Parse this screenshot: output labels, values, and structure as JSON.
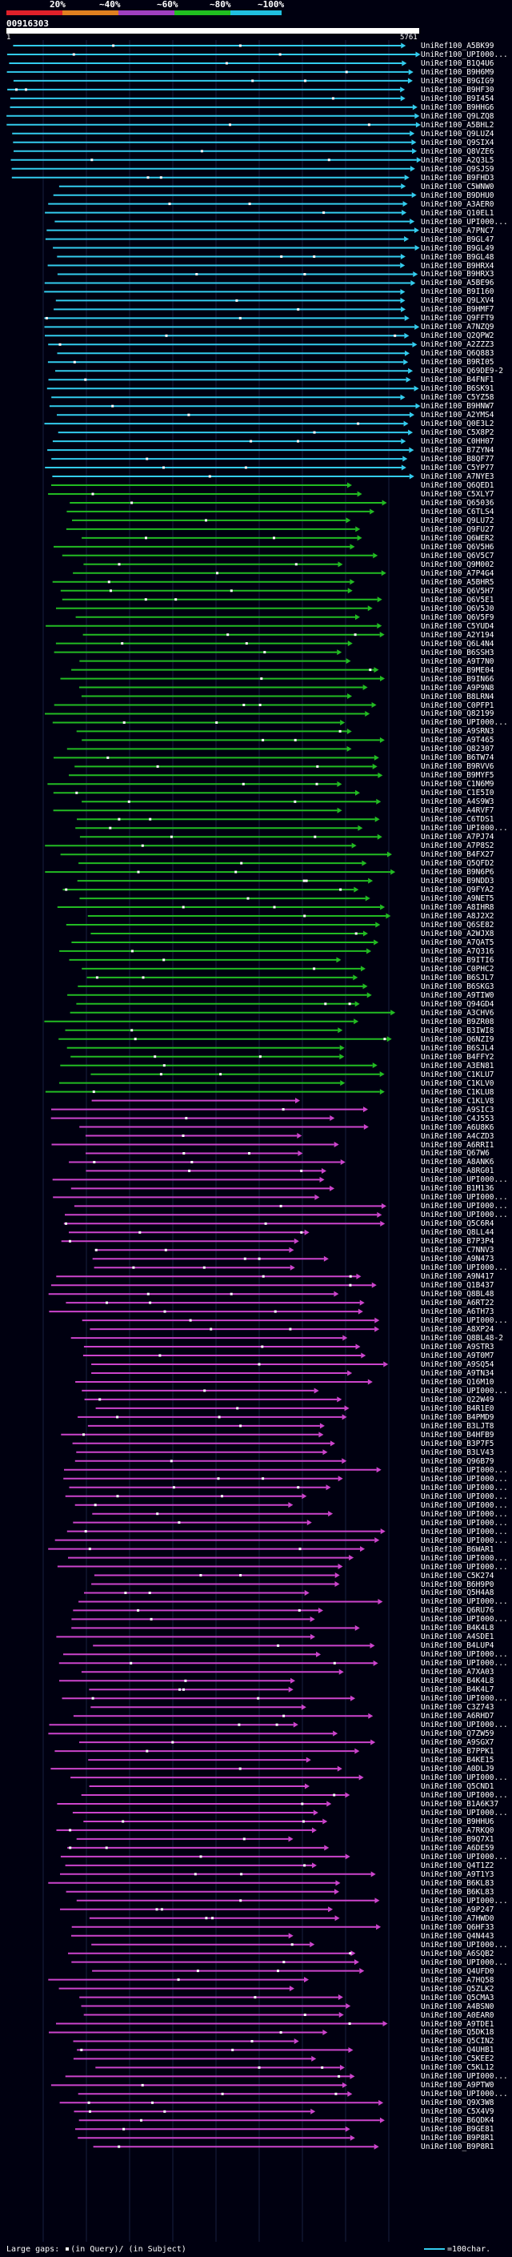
{
  "header": {
    "pct_labels": [
      "20%",
      "~40%",
      "~60%",
      "~80%",
      "~100%"
    ],
    "bands": [
      {
        "color": "#e0202a"
      },
      {
        "color": "#e08020"
      },
      {
        "color": "#a040c0"
      },
      {
        "color": "#20c020"
      },
      {
        "color": "#20c0e0"
      }
    ]
  },
  "query": {
    "id": "00916303",
    "start": "1",
    "end": "5761"
  },
  "colors": {
    "cyan": "#33ccee",
    "green": "#22bb22",
    "magenta": "#cc44cc",
    "gap": "#ffffff"
  },
  "hits": [
    "UniRef100_A5BK99",
    "UniRef100_UPI000...",
    "UniRef100_B1Q4U6",
    "UniRef100_B9H6M9",
    "UniRef100_B9GIG9",
    "UniRef100_B9HF30",
    "UniRef100_B9I454",
    "UniRef100_B9HHG6",
    "UniRef100_Q9LZQ8",
    "UniRef100_A5BHL2",
    "UniRef100_Q9LUZ4",
    "UniRef100_Q9SIX4",
    "UniRef100_Q8VZE6",
    "UniRef100_A2Q3L5",
    "UniRef100_Q9SJS9",
    "UniRef100_B9FHD3",
    "UniRef100_C5WNW0",
    "UniRef100_B9DHU0",
    "UniRef100_A3AER0",
    "UniRef100_Q10EL1",
    "UniRef100_UPI000...",
    "UniRef100_A7PNC7",
    "UniRef100_B9GL47",
    "UniRef100_B9GL49",
    "UniRef100_B9GL48",
    "UniRef100_B9HRX4",
    "UniRef100_B9HRX3",
    "UniRef100_A5BE96",
    "UniRef100_B9I160",
    "UniRef100_Q9LXV4",
    "UniRef100_B9HMF7",
    "UniRef100_Q9FFT9",
    "UniRef100_A7NZQ9",
    "UniRef100_Q2QPW2",
    "UniRef100_A2ZZZ3",
    "UniRef100_Q6Q883",
    "UniRef100_B9RI05",
    "UniRef100_Q69DE9-2",
    "UniRef100_B4FNF1",
    "UniRef100_B6SK91",
    "UniRef100_C5YZ58",
    "UniRef100_B9HNW7",
    "UniRef100_A2YMS4",
    "UniRef100_Q0E3L2",
    "UniRef100_C5X8P2",
    "UniRef100_C0HH07",
    "UniRef100_B7ZYN4",
    "UniRef100_B8QF77",
    "UniRef100_C5YP77",
    "UniRef100_A7NYE3",
    "UniRef100_Q6QED1",
    "UniRef100_C5XLY7",
    "UniRef100_Q65036",
    "UniRef100_C6TLS4",
    "UniRef100_Q9LU72",
    "UniRef100_Q9FU27",
    "UniRef100_Q6WER2",
    "UniRef100_Q6V5H6",
    "UniRef100_Q6V5C7",
    "UniRef100_Q9M002",
    "UniRef100_A7P4G4",
    "UniRef100_A5BHR5",
    "UniRef100_Q6V5H7",
    "UniRef100_Q6V5E1",
    "UniRef100_Q6V5J0",
    "UniRef100_Q6V5F9",
    "UniRef100_C5YUD4",
    "UniRef100_A2Y194",
    "UniRef100_Q6L4N4",
    "UniRef100_B6SSH3",
    "UniRef100_A9T7N0",
    "UniRef100_B9ME04",
    "UniRef100_B9IN66",
    "UniRef100_A9P9N8",
    "UniRef100_B8LRN4",
    "UniRef100_C0PFP1",
    "UniRef100_Q82199",
    "UniRef100_UPI000...",
    "UniRef100_A9SRN3",
    "UniRef100_A9T465",
    "UniRef100_Q82307",
    "UniRef100_B6TW74",
    "UniRef100_B9RVV6",
    "UniRef100_B9MYF5",
    "UniRef100_C1N6M9",
    "UniRef100_C1E5I0",
    "UniRef100_A4S9W3",
    "UniRef100_A4RVF7",
    "UniRef100_C6TDS1",
    "UniRef100_UPI000...",
    "UniRef100_A7PJ74",
    "UniRef100_A7P8S2",
    "UniRef100_B4FX27",
    "UniRef100_Q5QFD2",
    "UniRef100_B9N6P6",
    "UniRef100_B9NDD3",
    "UniRef100_Q9FYA2",
    "UniRef100_A9NET5",
    "UniRef100_A8IHR8",
    "UniRef100_A8J2X2",
    "UniRef100_Q6SE82",
    "UniRef100_A2WJX8",
    "UniRef100_A7QAT5",
    "UniRef100_A7Q316",
    "UniRef100_B9ITI6",
    "UniRef100_C0PHC2",
    "UniRef100_B6SJL7",
    "UniRef100_B6SKG3",
    "UniRef100_A9TIW0",
    "UniRef100_Q94GD4",
    "UniRef100_A3CHV6",
    "UniRef100_B9ZR08",
    "UniRef100_B3IWI8",
    "UniRef100_Q6NZI9",
    "UniRef100_B6SJL4",
    "UniRef100_B4FFY2",
    "UniRef100_A3EN81",
    "UniRef100_C1KLU7",
    "UniRef100_C1KLV0",
    "UniRef100_C1KLU8",
    "UniRef100_C1KLV8",
    "UniRef100_A9SIC3",
    "UniRef100_C4J553",
    "UniRef100_A6U8K6",
    "UniRef100_A4CZD3",
    "UniRef100_A6RRI1",
    "UniRef100_Q67W6",
    "UniRef100_A8ANK6",
    "UniRef100_A8RG01",
    "UniRef100_UPI000...",
    "UniRef100_B1M136",
    "UniRef100_UPI000...",
    "UniRef100_UPI000...",
    "UniRef100_UPI000...",
    "UniRef100_Q5C6R4",
    "UniRef100_Q8LL44",
    "UniRef100_B7P3P4",
    "UniRef100_C7NNV3",
    "UniRef100_A9N473",
    "UniRef100_UPI000...",
    "UniRef100_A9N417",
    "UniRef100_Q1B437",
    "UniRef100_Q8BL48",
    "UniRef100_A6RT22",
    "UniRef100_A6TH73",
    "UniRef100_UPI000...",
    "UniRef100_A8XP24",
    "UniRef100_Q8BL48-2",
    "UniRef100_A9STR3",
    "UniRef100_A9T0M7",
    "UniRef100_A9SQ54",
    "UniRef100_A9TN34",
    "UniRef100_Q16M10",
    "UniRef100_UPI000...",
    "UniRef100_Q22W49",
    "UniRef100_B4R1E0",
    "UniRef100_B4PMD9",
    "UniRef100_B3LJT8",
    "UniRef100_B4HFB9",
    "UniRef100_B3P7F5",
    "UniRef100_B3LV43",
    "UniRef100_Q96B79",
    "UniRef100_UPI000...",
    "UniRef100_UPI000...",
    "UniRef100_UPI000...",
    "UniRef100_UPI000...",
    "UniRef100_UPI000...",
    "UniRef100_UPI000...",
    "UniRef100_UPI000...",
    "UniRef100_UPI000...",
    "UniRef100_UPI000...",
    "UniRef100_B6WAR1",
    "UniRef100_UPI000...",
    "UniRef100_UPI000...",
    "UniRef100_C5K274",
    "UniRef100_B6H9P0",
    "UniRef100_Q5H4A8",
    "UniRef100_UPI000...",
    "UniRef100_Q6RU76",
    "UniRef100_UPI000...",
    "UniRef100_B4K4L8",
    "UniRef100_A4SDE1",
    "UniRef100_B4LUP4",
    "UniRef100_UPI000...",
    "UniRef100_UPI000...",
    "UniRef100_A7XA03",
    "UniRef100_B4K4L8",
    "UniRef100_B4K4L7",
    "UniRef100_UPI000...",
    "UniRef100_C3Z743",
    "UniRef100_A6RHD7",
    "UniRef100_UPI000...",
    "UniRef100_Q7ZW59",
    "UniRef100_A9SGX7",
    "UniRef100_B7PPK1",
    "UniRef100_B4KE15",
    "UniRef100_A0DLJ9",
    "UniRef100_UPI000...",
    "UniRef100_Q5CND1",
    "UniRef100_UPI000...",
    "UniRef100_B1A6K37",
    "UniRef100_UPI000...",
    "UniRef100_B9HHU6",
    "UniRef100_A7RKQ0",
    "UniRef100_B9Q7X1",
    "UniRef100_A6DE59",
    "UniRef100_UPI000...",
    "UniRef100_Q4T1Z2",
    "UniRef100_A9T1Y3",
    "UniRef100_B6KL83",
    "UniRef100_B6KL83",
    "UniRef100_UPI000...",
    "UniRef100_A9P247",
    "UniRef100_A7HWD0",
    "UniRef100_Q6HF33",
    "UniRef100_Q4N443",
    "UniRef100_UPI000...",
    "UniRef100_A6SQB2",
    "UniRef100_UPI000...",
    "UniRef100_Q4UFD0",
    "UniRef100_A7HQ58",
    "UniRef100_Q5ZLK2",
    "UniRef100_Q5CMA3",
    "UniRef100_A4BSN0",
    "UniRef100_A0EAR0",
    "UniRef100_A9TDE1",
    "UniRef100_Q5DK18",
    "UniRef100_Q5CIN2",
    "UniRef100_Q4UHB1",
    "UniRef100_C5KEE2",
    "UniRef100_C5KL12",
    "UniRef100_UPI000...",
    "UniRef100_A9PTW0",
    "UniRef100_UPI000...",
    "UniRef100_Q9X3W8",
    "UniRef100_C5X4V9",
    "UniRef100_B6QDK4",
    "UniRef100_B9GE81",
    "UniRef100_B9P8R1",
    "UniRef100_B9P8R1"
  ],
  "legend": {
    "gaps_label": "Large gaps:",
    "gap_query": "(in Query)/",
    "gap_subject": "(in Subject)",
    "scale": "=100char."
  }
}
